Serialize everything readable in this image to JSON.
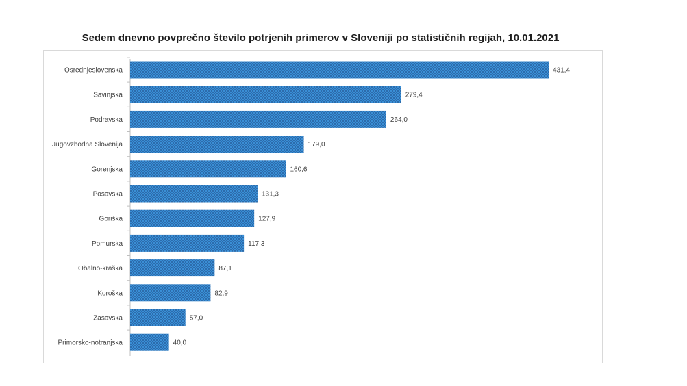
{
  "chart_data": {
    "type": "bar",
    "orientation": "horizontal",
    "title": "Sedem dnevno povprečno število potrjenih primerov v Sloveniji po statističnih regijah, 10.01.2021",
    "categories": [
      "Osrednjeslovenska",
      "Savinjska",
      "Podravska",
      "Jugovzhodna Slovenija",
      "Gorenjska",
      "Posavska",
      "Goriška",
      "Pomurska",
      "Obalno-kraška",
      "Koroška",
      "Zasavska",
      "Primorsko-notranjska"
    ],
    "values": [
      431.4,
      279.4,
      264.0,
      179.0,
      160.6,
      131.3,
      127.9,
      117.3,
      87.1,
      82.9,
      57.0,
      40.0
    ],
    "value_labels": [
      "431,4",
      "279,4",
      "264,0",
      "179,0",
      "160,6",
      "131,3",
      "127,9",
      "117,3",
      "87,1",
      "82,9",
      "57,0",
      "40,0"
    ],
    "xlim": [
      0,
      431.4
    ],
    "grid": false,
    "legend": "none",
    "bar_color": "#3a8fd6",
    "bar_pattern_dot_color": "#1f4f8a"
  }
}
